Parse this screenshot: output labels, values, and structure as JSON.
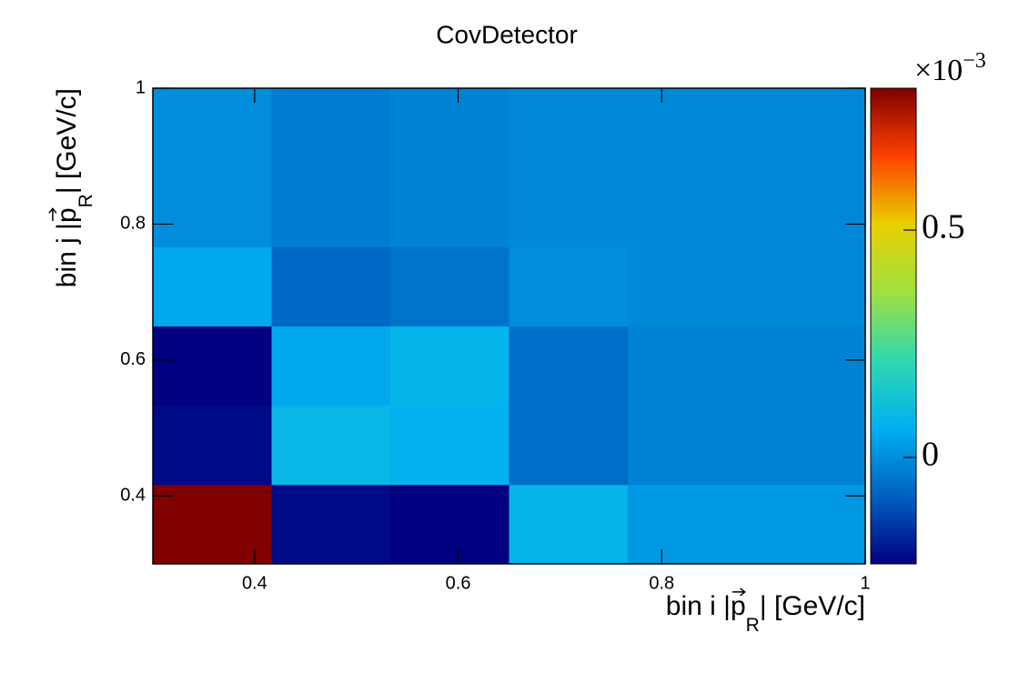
{
  "chart_data": {
    "type": "heatmap",
    "title": "CovDetector",
    "xlabel_parts": [
      "bin i |",
      "p",
      "R",
      "| [GeV/c]"
    ],
    "ylabel_parts": [
      "bin j |",
      "p",
      "R",
      "| [GeV/c]"
    ],
    "x_bins": [
      0.3,
      0.41667,
      0.53333,
      0.65,
      0.76667,
      0.88333,
      1.0
    ],
    "y_bins": [
      0.3,
      0.41667,
      0.53333,
      0.65,
      0.76667,
      0.88333,
      1.0
    ],
    "values": [
      [
        0.812,
        -0.22,
        -0.234,
        0.08,
        0.02,
        0.02
      ],
      [
        -0.22,
        0.09,
        0.07,
        -0.06,
        -0.02,
        -0.02
      ],
      [
        -0.234,
        0.05,
        0.08,
        -0.06,
        -0.02,
        -0.02
      ],
      [
        0.05,
        -0.07,
        -0.05,
        0.0,
        -0.01,
        -0.01
      ],
      [
        0.0,
        -0.03,
        -0.02,
        -0.01,
        -0.01,
        -0.01
      ],
      [
        0.0,
        -0.03,
        -0.02,
        -0.01,
        -0.01,
        -0.01
      ]
    ],
    "xlim": [
      0.3,
      1.0
    ],
    "ylim": [
      0.3,
      1.0
    ],
    "xticks": [
      0.4,
      0.6,
      0.8,
      1
    ],
    "yticks": [
      0.4,
      0.6,
      0.8,
      1
    ],
    "zlim": [
      -0.234,
      0.812
    ],
    "zticks": [
      0,
      0.5
    ],
    "colorbar_multiplier": "×10",
    "colorbar_exponent": "−3",
    "colormap": [
      "#000080",
      "#0060c0",
      "#00b0f0",
      "#30d8b0",
      "#a0e040",
      "#e8d000",
      "#ff4000",
      "#800000"
    ]
  }
}
